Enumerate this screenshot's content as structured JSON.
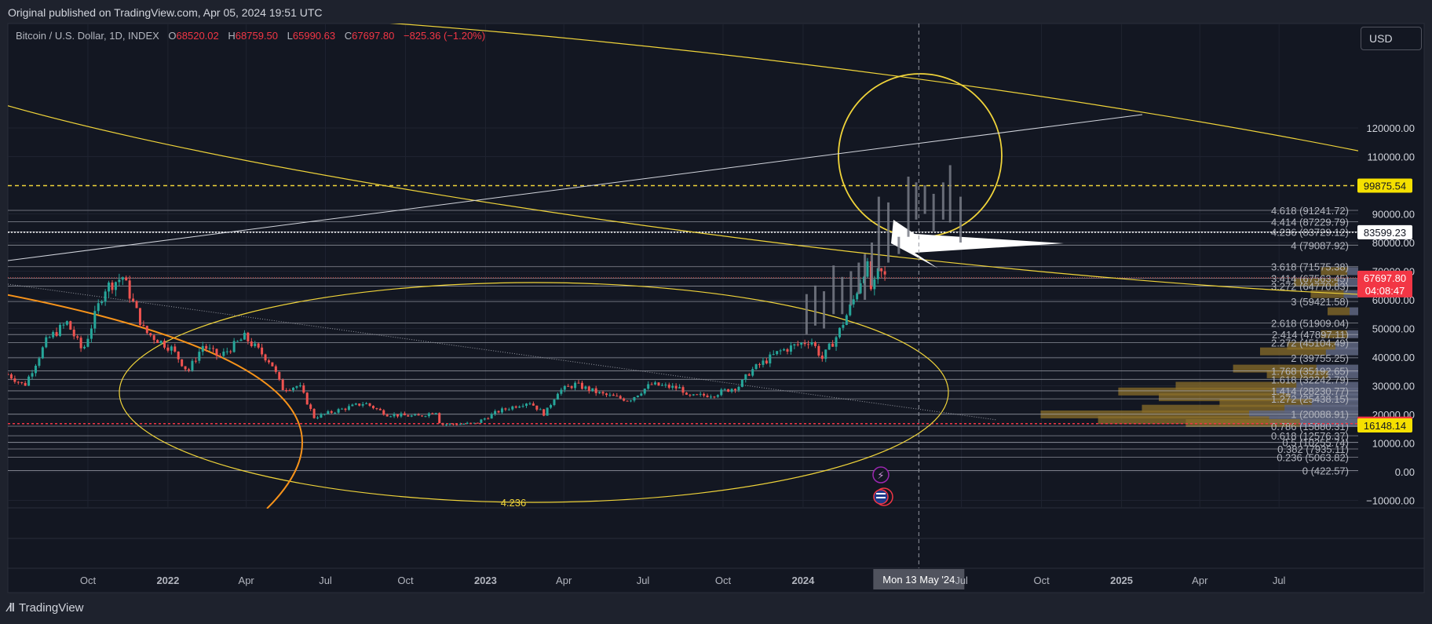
{
  "header": {
    "published": "Original published on TradingView.com, Apr 05, 2024 19:51 UTC"
  },
  "legend": {
    "symbol": "Bitcoin / U.S. Dollar, 1D, INDEX",
    "o_label": "O",
    "o": "68520.02",
    "h_label": "H",
    "h": "68759.50",
    "l_label": "L",
    "l": "65990.63",
    "c_label": "C",
    "c": "67697.80",
    "change": "−825.36 (−1.20%)"
  },
  "currency_button": "USD",
  "brand": {
    "name": "TradingView"
  },
  "colors": {
    "background": "#131722",
    "up": "#26a69a",
    "down": "#ef5350",
    "fib_line": "#b2b5be",
    "ellipse": "#f0d43a",
    "arc": "#f7931a",
    "price_badge_red": "#f23645",
    "price_badge_yellow": "#f5e000",
    "price_badge_white": "#ffffff"
  },
  "chart_data": {
    "type": "candlestick",
    "title": "Bitcoin / U.S. Dollar, 1D, INDEX",
    "xlim": [
      "2021-07-01",
      "2025-09-30"
    ],
    "ylim": [
      -12000,
      132000
    ],
    "y_ticks": [
      "120000.00",
      "110000.00",
      "90000.00",
      "80000.00",
      "70000.00",
      "60000.00",
      "50000.00",
      "40000.00",
      "30000.00",
      "20000.00",
      "10000.00",
      "0.00",
      "−10000.00"
    ],
    "x_ticks": [
      {
        "label": "Oct",
        "bold": false,
        "date": "2021-10-01"
      },
      {
        "label": "2022",
        "bold": true,
        "date": "2022-01-01"
      },
      {
        "label": "Apr",
        "bold": false,
        "date": "2022-04-01"
      },
      {
        "label": "Jul",
        "bold": false,
        "date": "2022-07-01"
      },
      {
        "label": "Oct",
        "bold": false,
        "date": "2022-10-01"
      },
      {
        "label": "2023",
        "bold": true,
        "date": "2023-01-01"
      },
      {
        "label": "Apr",
        "bold": false,
        "date": "2023-04-01"
      },
      {
        "label": "Jul",
        "bold": false,
        "date": "2023-07-01"
      },
      {
        "label": "Oct",
        "bold": false,
        "date": "2023-10-01"
      },
      {
        "label": "2024",
        "bold": true,
        "date": "2024-01-01"
      },
      {
        "label": "Jul",
        "bold": false,
        "date": "2024-07-01"
      },
      {
        "label": "Oct",
        "bold": false,
        "date": "2024-10-01"
      },
      {
        "label": "2025",
        "bold": true,
        "date": "2025-01-01"
      },
      {
        "label": "Apr",
        "bold": false,
        "date": "2025-04-01"
      },
      {
        "label": "Jul",
        "bold": false,
        "date": "2025-07-01"
      }
    ],
    "crosshair": {
      "date": "2024-05-13",
      "label": "Mon 13 May '24"
    },
    "price_path": [
      [
        "2021-07-01",
        34000
      ],
      [
        "2021-07-20",
        30000
      ],
      [
        "2021-08-15",
        46000
      ],
      [
        "2021-09-07",
        52000
      ],
      [
        "2021-09-25",
        42000
      ],
      [
        "2021-10-20",
        64000
      ],
      [
        "2021-11-10",
        68000
      ],
      [
        "2021-12-05",
        49000
      ],
      [
        "2022-01-05",
        43000
      ],
      [
        "2022-01-24",
        35000
      ],
      [
        "2022-02-10",
        44000
      ],
      [
        "2022-03-01",
        40000
      ],
      [
        "2022-03-30",
        47000
      ],
      [
        "2022-04-30",
        38000
      ],
      [
        "2022-05-12",
        29000
      ],
      [
        "2022-06-01",
        30000
      ],
      [
        "2022-06-18",
        19000
      ],
      [
        "2022-07-10",
        21000
      ],
      [
        "2022-08-15",
        24000
      ],
      [
        "2022-09-10",
        20000
      ],
      [
        "2022-10-15",
        19300
      ],
      [
        "2022-11-05",
        21000
      ],
      [
        "2022-11-10",
        16500
      ],
      [
        "2022-12-20",
        16800
      ],
      [
        "2023-01-15",
        21000
      ],
      [
        "2023-02-20",
        24500
      ],
      [
        "2023-03-10",
        20000
      ],
      [
        "2023-03-25",
        28000
      ],
      [
        "2023-04-14",
        30500
      ],
      [
        "2023-05-15",
        27000
      ],
      [
        "2023-06-15",
        25000
      ],
      [
        "2023-07-10",
        30500
      ],
      [
        "2023-08-15",
        29000
      ],
      [
        "2023-08-20",
        26000
      ],
      [
        "2023-09-20",
        27000
      ],
      [
        "2023-10-20",
        30000
      ],
      [
        "2023-11-01",
        35000
      ],
      [
        "2023-12-05",
        42000
      ],
      [
        "2024-01-10",
        46000
      ],
      [
        "2024-01-23",
        39500
      ],
      [
        "2024-02-10",
        48000
      ],
      [
        "2024-02-28",
        60000
      ],
      [
        "2024-03-14",
        73000
      ],
      [
        "2024-03-20",
        62000
      ],
      [
        "2024-03-28",
        70000
      ],
      [
        "2024-04-05",
        67697.8
      ]
    ],
    "projection_bars": [
      {
        "date": "2024-01-05",
        "low": 48000,
        "high": 62000
      },
      {
        "date": "2024-01-15",
        "low": 51000,
        "high": 65000
      },
      {
        "date": "2024-01-25",
        "low": 50000,
        "high": 63000
      },
      {
        "date": "2024-02-05",
        "low": 55000,
        "high": 72000
      },
      {
        "date": "2024-02-15",
        "low": 55000,
        "high": 68000
      },
      {
        "date": "2024-02-25",
        "low": 58000,
        "high": 70000
      },
      {
        "date": "2024-03-05",
        "low": 62000,
        "high": 73000
      },
      {
        "date": "2024-03-12",
        "low": 60000,
        "high": 76000
      },
      {
        "date": "2024-03-20",
        "low": 65000,
        "high": 80000
      },
      {
        "date": "2024-03-28",
        "low": 70000,
        "high": 96000
      },
      {
        "date": "2024-04-08",
        "low": 73000,
        "high": 94000
      },
      {
        "date": "2024-04-20",
        "low": 76000,
        "high": 82000
      },
      {
        "date": "2024-05-01",
        "low": 82000,
        "high": 103000
      },
      {
        "date": "2024-05-10",
        "low": 88000,
        "high": 101000
      },
      {
        "date": "2024-05-20",
        "low": 90000,
        "high": 100000
      },
      {
        "date": "2024-05-30",
        "low": 84000,
        "high": 97000
      },
      {
        "date": "2024-06-10",
        "low": 88000,
        "high": 101000
      },
      {
        "date": "2024-06-18",
        "low": 87000,
        "high": 107000
      },
      {
        "date": "2024-06-30",
        "low": 80000,
        "high": 96000
      }
    ],
    "fib_levels": [
      {
        "label": "4.618 (91241.72)",
        "price": 91241.72
      },
      {
        "label": "4.414 (87229.79)",
        "price": 87229.79
      },
      {
        "label": "4.236 (83729.12)",
        "price": 83729.12
      },
      {
        "label": "4 (79087.92)",
        "price": 79087.92
      },
      {
        "label": "3.618 (71575.38)",
        "price": 71575.38
      },
      {
        "label": "3.414 (67563.45)",
        "price": 67563.45
      },
      {
        "label": "3.272 (64770.83)",
        "price": 64770.83
      },
      {
        "label": "3 (59421.58)",
        "price": 59421.58
      },
      {
        "label": "2.618 (51909.04)",
        "price": 51909.04
      },
      {
        "label": "2.414 (47897.11)",
        "price": 47897.11
      },
      {
        "label": "2.272 (45104.49)",
        "price": 45104.49
      },
      {
        "label": "2 (39755.25)",
        "price": 39755.25
      },
      {
        "label": "1.768 (35192.65)",
        "price": 35192.65
      },
      {
        "label": "1.618 (32242.79)",
        "price": 32242.79
      },
      {
        "label": "1.414 (28230.77)",
        "price": 28230.77
      },
      {
        "label": "1.272 (25438.15)",
        "price": 25438.15
      },
      {
        "label": "1 (20088.91)",
        "price": 20088.91
      },
      {
        "label": "0.786 (15880.31)",
        "price": 15880.31
      },
      {
        "label": "0.618 (12576.37)",
        "price": 12576.37
      },
      {
        "label": "0.5 (10255.74)",
        "price": 10255.74
      },
      {
        "label": "0.382 (7935.11)",
        "price": 7935.11
      },
      {
        "label": "0.236 (5063.82)",
        "price": 5063.82
      },
      {
        "label": "0 (422.57)",
        "price": 422.57
      }
    ],
    "price_badges": [
      {
        "label": "99875.54",
        "price": 99875.54,
        "style": "yellow"
      },
      {
        "label": "83599.23",
        "price": 83599.23,
        "style": "white"
      },
      {
        "label": "67697.80",
        "sub": "04:08:47",
        "price": 67697.8,
        "style": "red"
      },
      {
        "label": "16785.16",
        "price": 16785.16,
        "style": "red"
      },
      {
        "label": "16148.14",
        "price": 16148.14,
        "style": "yellow"
      }
    ],
    "horizontal_lines": [
      {
        "price": 99875.54,
        "color": "#f0d43a",
        "dash": "5,4"
      },
      {
        "price": 83599.23,
        "color": "#ffffff",
        "dash": "2,2"
      },
      {
        "price": 16785.16,
        "color": "#f23645",
        "dash": "3,3"
      }
    ],
    "annotation_label": "4.236",
    "volume_profile": [
      {
        "price": 36000,
        "volume": 0.38
      },
      {
        "price": 34000,
        "volume": 0.28
      },
      {
        "price": 30000,
        "volume": 0.55
      },
      {
        "price": 28000,
        "volume": 0.72
      },
      {
        "price": 26000,
        "volume": 0.6
      },
      {
        "price": 24000,
        "volume": 0.42
      },
      {
        "price": 22000,
        "volume": 0.65
      },
      {
        "price": 20000,
        "volume": 0.95
      },
      {
        "price": 18000,
        "volume": 0.78
      },
      {
        "price": 17000,
        "volume": 0.52
      },
      {
        "price": 42000,
        "volume": 0.3
      },
      {
        "price": 44000,
        "volume": 0.22
      },
      {
        "price": 48000,
        "volume": 0.12
      },
      {
        "price": 56000,
        "volume": 0.1
      },
      {
        "price": 62000,
        "volume": 0.15
      },
      {
        "price": 66000,
        "volume": 0.2
      },
      {
        "price": 70000,
        "volume": 0.12
      }
    ]
  }
}
